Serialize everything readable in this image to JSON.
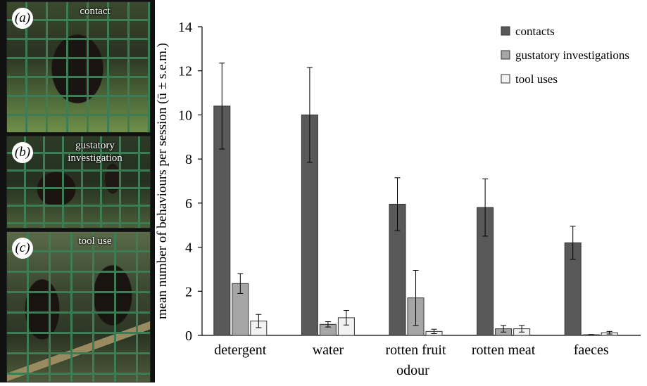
{
  "panels": [
    {
      "letter": "(a)",
      "caption": "contact"
    },
    {
      "letter": "(b)",
      "caption": "gustatory investigation"
    },
    {
      "letter": "(c)",
      "caption": "tool use"
    }
  ],
  "chart_data": {
    "type": "bar",
    "title": "",
    "xlabel": "odour",
    "ylabel": "mean number of behaviours per session (ū ± s.e.m.)",
    "ylim": [
      0,
      14
    ],
    "yticks": [
      0,
      2,
      4,
      6,
      8,
      10,
      12,
      14
    ],
    "categories": [
      "detergent",
      "water",
      "rotten fruit",
      "rotten meat",
      "faeces"
    ],
    "legend_position": "top-right",
    "series": [
      {
        "name": "contacts",
        "color": "#595959",
        "values": [
          10.4,
          10.0,
          5.95,
          5.8,
          4.2
        ],
        "errors": [
          1.95,
          2.15,
          1.2,
          1.3,
          0.75
        ]
      },
      {
        "name": "gustatory investigations",
        "color": "#a6a6a6",
        "values": [
          2.35,
          0.5,
          1.7,
          0.3,
          0.03
        ],
        "errors": [
          0.45,
          0.12,
          1.25,
          0.15,
          0.01
        ]
      },
      {
        "name": "tool uses",
        "color": "#f2f2f2",
        "values": [
          0.65,
          0.8,
          0.18,
          0.3,
          0.12
        ],
        "errors": [
          0.3,
          0.33,
          0.1,
          0.15,
          0.06
        ]
      }
    ]
  }
}
